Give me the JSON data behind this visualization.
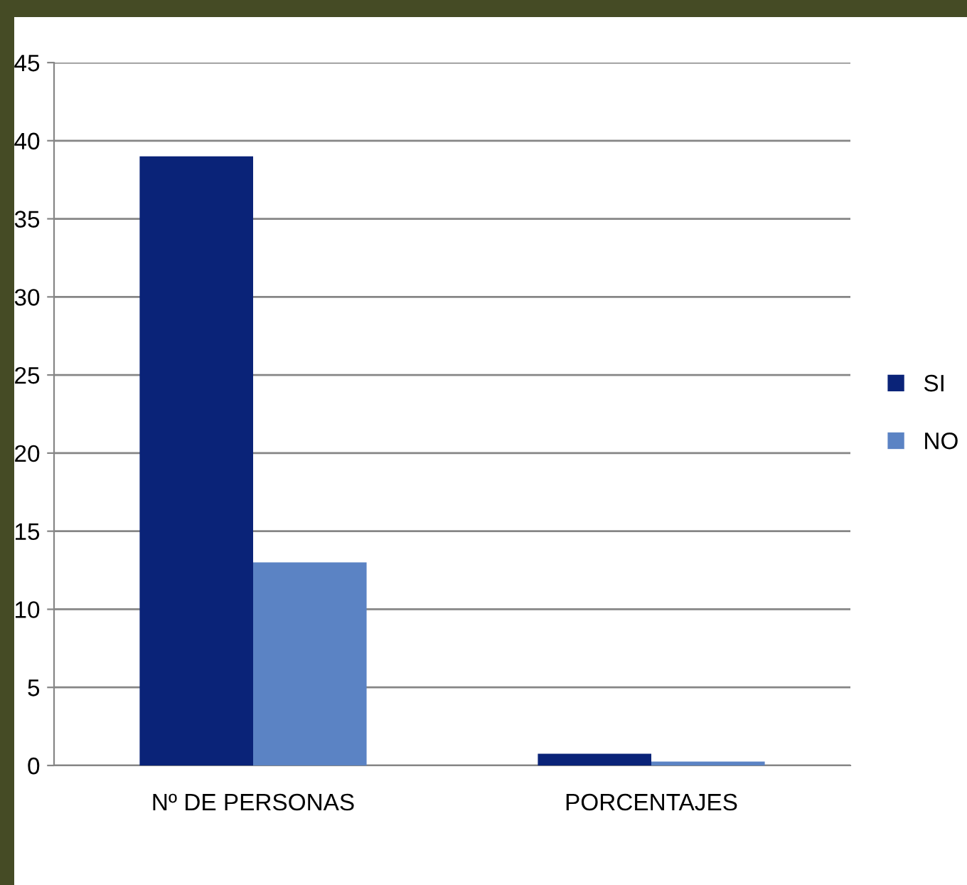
{
  "chart_data": {
    "type": "bar",
    "categories": [
      "Nº DE PERSONAS",
      "PORCENTAJES"
    ],
    "series": [
      {
        "name": "SI",
        "color": "#0a2378",
        "values": [
          39,
          0.75
        ]
      },
      {
        "name": "NO",
        "color": "#5b83c4",
        "values": [
          13,
          0.25
        ]
      }
    ],
    "ylim": [
      0,
      45
    ],
    "yticks": [
      0,
      5,
      10,
      15,
      20,
      25,
      30,
      35,
      40,
      45
    ],
    "grid": "y",
    "legend": "right"
  }
}
